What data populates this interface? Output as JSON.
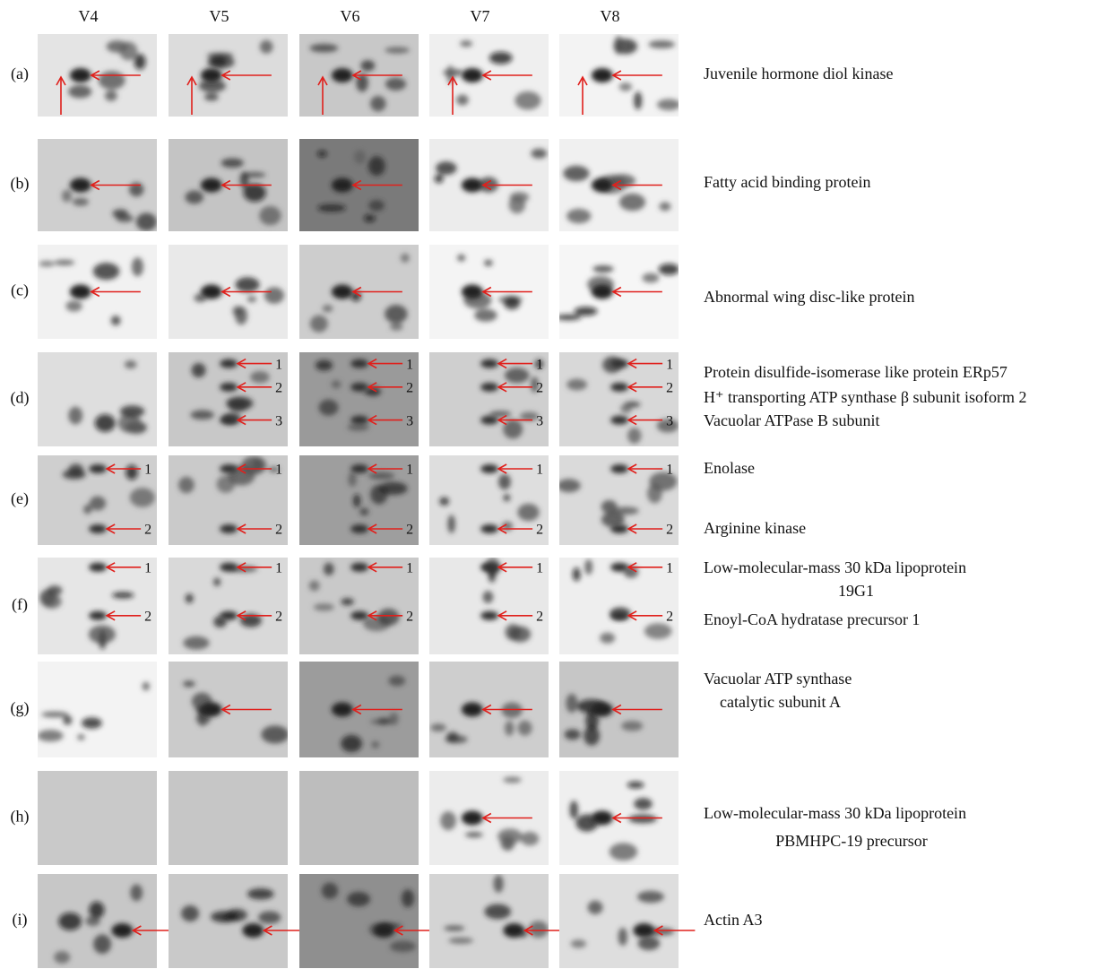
{
  "column_headers": [
    "V4",
    "V5",
    "V6",
    "V7",
    "V8"
  ],
  "rows": [
    {
      "label": "(a)",
      "annotations": [
        "Juvenile hormone diol kinase"
      ]
    },
    {
      "label": "(b)",
      "annotations": [
        "Fatty acid binding protein"
      ]
    },
    {
      "label": "(c)",
      "annotations": [
        "Abnormal wing disc-like protein"
      ]
    },
    {
      "label": "(d)",
      "annotations": [
        "Protein disulfide-isomerase like protein ERp57",
        "H⁺ transporting ATP synthase β subunit isoform 2",
        "Vacuolar ATPase B subunit"
      ],
      "spot_numbers": [
        "1",
        "2",
        "3"
      ]
    },
    {
      "label": "(e)",
      "annotations": [
        "Enolase",
        "Arginine kinase"
      ],
      "spot_numbers": [
        "1",
        "2"
      ]
    },
    {
      "label": "(f)",
      "annotations": [
        "Low-molecular-mass 30 kDa lipoprotein",
        "19G1",
        "Enoyl-CoA hydratase precursor 1"
      ],
      "spot_numbers": [
        "1",
        "2"
      ]
    },
    {
      "label": "(g)",
      "annotations": [
        "Vacuolar ATP synthase",
        "catalytic subunit A"
      ]
    },
    {
      "label": "(h)",
      "annotations": [
        "Low-molecular-mass 30 kDa lipoprotein",
        "PBMHPC-19 precursor"
      ]
    },
    {
      "label": "(i)",
      "annotations": [
        "Actin A3"
      ]
    }
  ]
}
